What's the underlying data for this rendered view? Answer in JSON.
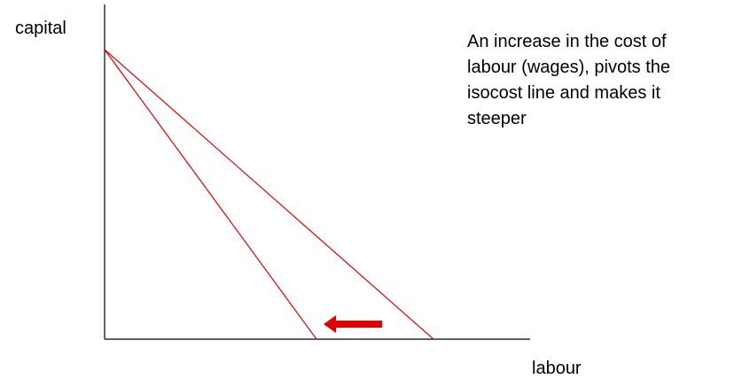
{
  "labels": {
    "y_axis": "capital",
    "x_axis": "labour"
  },
  "annotation": {
    "lines": [
      "An increase in the cost of",
      "labour (wages), pivots the",
      "isocost line and makes it",
      "steeper"
    ]
  },
  "diagram": {
    "type": "isocost-pivot",
    "original_isocost_color": "#e00000",
    "new_isocost_color": "#e00000",
    "arrow_color": "#e00000",
    "arrow_direction": "left",
    "axis_color": "#000000"
  }
}
